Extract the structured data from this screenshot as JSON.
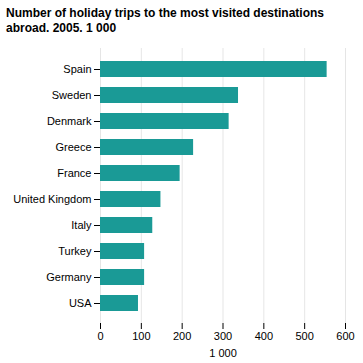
{
  "chart_data": {
    "type": "bar",
    "title": "Number of holiday trips to the most visited destinations\nabroad. 2005. 1 000",
    "orientation": "horizontal",
    "categories": [
      "Spain",
      "Sweden",
      "Denmark",
      "Greece",
      "France",
      "United Kingdom",
      "Italy",
      "Turkey",
      "Germany",
      "USA"
    ],
    "values": [
      555,
      338,
      315,
      228,
      195,
      148,
      128,
      108,
      108,
      93
    ],
    "color": "#1a9a96",
    "xlim": [
      0,
      600
    ],
    "xticks": [
      0,
      100,
      200,
      300,
      400,
      500,
      600
    ],
    "xlabel": "1 000",
    "grid": true
  }
}
